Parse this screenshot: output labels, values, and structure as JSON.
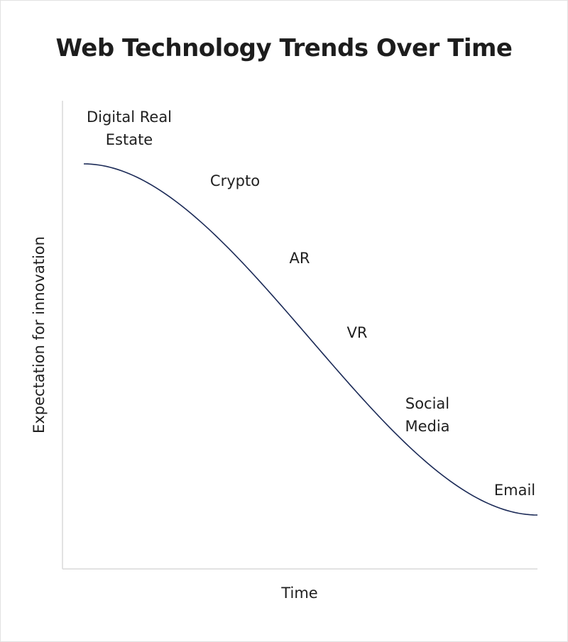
{
  "chart_data": {
    "type": "line",
    "title": "Web Technology Trends Over Time",
    "xlabel": "Time",
    "ylabel": "Expectation for innovation",
    "ylim": [
      0,
      1
    ],
    "grid": false,
    "line_color": "#1b2a57",
    "axis_color": "#d9d9d9",
    "annotations": [
      {
        "lines": [
          "Digital Real",
          "Estate"
        ]
      },
      {
        "lines": [
          "Crypto"
        ]
      },
      {
        "lines": [
          "AR"
        ]
      },
      {
        "lines": [
          "VR"
        ]
      },
      {
        "lines": [
          "Social",
          "Media"
        ]
      },
      {
        "lines": [
          "Email"
        ]
      }
    ]
  }
}
